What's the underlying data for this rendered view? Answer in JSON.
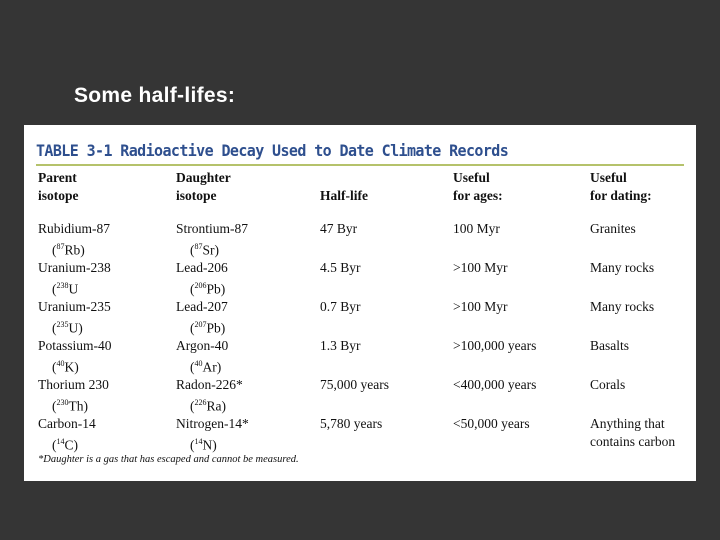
{
  "slide": {
    "title": "Some half-lifes:"
  },
  "table": {
    "heading": "TABLE 3-1 Radioactive Decay Used to Date Climate Records",
    "columns": [
      {
        "line1": "Parent",
        "line2": "isotope"
      },
      {
        "line1": "Daughter",
        "line2": "isotope"
      },
      {
        "line1": "",
        "line2": "Half-life"
      },
      {
        "line1": "Useful",
        "line2": "for ages:"
      },
      {
        "line1": "Useful",
        "line2": "for dating:"
      }
    ],
    "rows": [
      {
        "parent": "Rubidium-87",
        "parent_mass": "87",
        "parent_sym": "Rb)",
        "daughter": "Strontium-87",
        "daughter_mass": "87",
        "daughter_sym": "Sr)",
        "half_life": "47 Byr",
        "ages": "100 Myr",
        "dating": "Granites",
        "dating2": ""
      },
      {
        "parent": "Uranium-238",
        "parent_mass": "238",
        "parent_sym": "U",
        "daughter": "Lead-206",
        "daughter_mass": "206",
        "daughter_sym": "Pb)",
        "half_life": "4.5 Byr",
        "ages": ">100 Myr",
        "dating": "Many rocks",
        "dating2": ""
      },
      {
        "parent": "Uranium-235",
        "parent_mass": "235",
        "parent_sym": "U)",
        "daughter": "Lead-207",
        "daughter_mass": "207",
        "daughter_sym": "Pb)",
        "half_life": "0.7 Byr",
        "ages": ">100 Myr",
        "dating": "Many rocks",
        "dating2": ""
      },
      {
        "parent": "Potassium-40",
        "parent_mass": "40",
        "parent_sym": "K)",
        "daughter": "Argon-40",
        "daughter_mass": "40",
        "daughter_sym": "Ar)",
        "half_life": "1.3 Byr",
        "ages": ">100,000 years",
        "dating": "Basalts",
        "dating2": ""
      },
      {
        "parent": "Thorium 230",
        "parent_mass": "230",
        "parent_sym": "Th)",
        "daughter": "Radon-226*",
        "daughter_mass": "226",
        "daughter_sym": "Ra)",
        "half_life": "75,000 years",
        "ages": "<400,000 years",
        "dating": "Corals",
        "dating2": ""
      },
      {
        "parent": "Carbon-14",
        "parent_mass": "14",
        "parent_sym": "C)",
        "daughter": "Nitrogen-14*",
        "daughter_mass": "14",
        "daughter_sym": "N)",
        "half_life": "5,780 years",
        "ages": "<50,000 years",
        "dating": "Anything that",
        "dating2": "contains carbon"
      }
    ],
    "footnote": "*Daughter is a gas that has escaped and cannot be measured."
  }
}
